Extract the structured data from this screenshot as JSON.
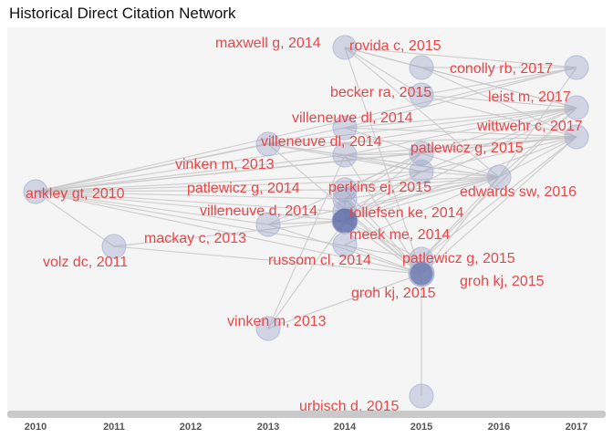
{
  "chart_data": {
    "type": "network",
    "title": "Historical Direct Citation Network",
    "x_axis": {
      "label": "",
      "years": [
        2010,
        2011,
        2012,
        2013,
        2014,
        2015,
        2016,
        2017
      ]
    },
    "nodes": [
      {
        "id": "n1",
        "label": "maxwell g, 2014",
        "year": 2014
      },
      {
        "id": "n2",
        "label": "rovida c, 2015",
        "year": 2015
      },
      {
        "id": "n3",
        "label": "conolly rb, 2017",
        "year": 2017
      },
      {
        "id": "n4",
        "label": "becker ra, 2015",
        "year": 2015
      },
      {
        "id": "n5",
        "label": "leist m, 2017",
        "year": 2017
      },
      {
        "id": "n6",
        "label": "villeneuve dl, 2014",
        "year": 2014
      },
      {
        "id": "n7",
        "label": "wittwehr c, 2017",
        "year": 2017
      },
      {
        "id": "n8",
        "label": "villeneuve dl, 2014",
        "year": 2014
      },
      {
        "id": "n9",
        "label": "patlewicz g, 2015",
        "year": 2015
      },
      {
        "id": "n10",
        "label": "vinken m, 2013",
        "year": 2013
      },
      {
        "id": "n11",
        "label": "ankley gt, 2010",
        "year": 2010
      },
      {
        "id": "n12",
        "label": "patlewicz g, 2014",
        "year": 2014
      },
      {
        "id": "n13",
        "label": "perkins ej, 2015",
        "year": 2015
      },
      {
        "id": "n14",
        "label": "edwards sw, 2016",
        "year": 2016
      },
      {
        "id": "n15",
        "label": "villeneuve d, 2014",
        "year": 2014
      },
      {
        "id": "n16",
        "label": "tollefsen ke, 2014",
        "year": 2014
      },
      {
        "id": "n17",
        "label": "mackay c, 2013",
        "year": 2013
      },
      {
        "id": "n18",
        "label": "meek me, 2014",
        "year": 2014
      },
      {
        "id": "n19",
        "label": "volz dc, 2011",
        "year": 2011
      },
      {
        "id": "n20",
        "label": "russom cl, 2014",
        "year": 2014
      },
      {
        "id": "n21",
        "label": "patlewicz g, 2015",
        "year": 2015
      },
      {
        "id": "n22",
        "label": "groh kj, 2015",
        "year": 2015
      },
      {
        "id": "n23",
        "label": "groh kj, 2015",
        "year": 2015
      },
      {
        "id": "n24",
        "label": "vinken m, 2013",
        "year": 2013
      },
      {
        "id": "n25",
        "label": "urbisch d, 2015",
        "year": 2015
      }
    ],
    "edges": [
      [
        "n11",
        "n19"
      ],
      [
        "n11",
        "n10"
      ],
      [
        "n11",
        "n12"
      ],
      [
        "n11",
        "n15"
      ],
      [
        "n11",
        "n18"
      ],
      [
        "n11",
        "n22"
      ],
      [
        "n11",
        "n14"
      ],
      [
        "n11",
        "n3"
      ],
      [
        "n11",
        "n8"
      ],
      [
        "n11",
        "n6"
      ],
      [
        "n11",
        "n9"
      ],
      [
        "n11",
        "n16"
      ],
      [
        "n11",
        "n17"
      ],
      [
        "n11",
        "n7"
      ],
      [
        "n11",
        "n5"
      ],
      [
        "n11",
        "n13"
      ],
      [
        "n11",
        "n21"
      ],
      [
        "n19",
        "n22"
      ],
      [
        "n19",
        "n18"
      ],
      [
        "n10",
        "n8"
      ],
      [
        "n10",
        "n13"
      ],
      [
        "n10",
        "n14"
      ],
      [
        "n10",
        "n5"
      ],
      [
        "n10",
        "n7"
      ],
      [
        "n10",
        "n22"
      ],
      [
        "n17",
        "n18"
      ],
      [
        "n17",
        "n22"
      ],
      [
        "n17",
        "n9"
      ],
      [
        "n17",
        "n14"
      ],
      [
        "n24",
        "n22"
      ],
      [
        "n24",
        "n18"
      ],
      [
        "n24",
        "n8"
      ],
      [
        "n1",
        "n2"
      ],
      [
        "n1",
        "n3"
      ],
      [
        "n1",
        "n5"
      ],
      [
        "n1",
        "n14"
      ],
      [
        "n1",
        "n22"
      ],
      [
        "n1",
        "n4"
      ],
      [
        "n2",
        "n3"
      ],
      [
        "n2",
        "n5"
      ],
      [
        "n2",
        "n7"
      ],
      [
        "n4",
        "n5"
      ],
      [
        "n4",
        "n3"
      ],
      [
        "n4",
        "n7"
      ],
      [
        "n6",
        "n9"
      ],
      [
        "n6",
        "n7"
      ],
      [
        "n6",
        "n5"
      ],
      [
        "n6",
        "n3"
      ],
      [
        "n8",
        "n9"
      ],
      [
        "n8",
        "n14"
      ],
      [
        "n8",
        "n7"
      ],
      [
        "n8",
        "n5"
      ],
      [
        "n8",
        "n22"
      ],
      [
        "n8",
        "n13"
      ],
      [
        "n9",
        "n7"
      ],
      [
        "n9",
        "n5"
      ],
      [
        "n9",
        "n14"
      ],
      [
        "n12",
        "n13"
      ],
      [
        "n12",
        "n9"
      ],
      [
        "n12",
        "n14"
      ],
      [
        "n12",
        "n22"
      ],
      [
        "n13",
        "n14"
      ],
      [
        "n13",
        "n7"
      ],
      [
        "n13",
        "n5"
      ],
      [
        "n15",
        "n18"
      ],
      [
        "n15",
        "n22"
      ],
      [
        "n15",
        "n14"
      ],
      [
        "n15",
        "n9"
      ],
      [
        "n16",
        "n22"
      ],
      [
        "n16",
        "n14"
      ],
      [
        "n16",
        "n13"
      ],
      [
        "n18",
        "n22"
      ],
      [
        "n18",
        "n21"
      ],
      [
        "n18",
        "n14"
      ],
      [
        "n18",
        "n13"
      ],
      [
        "n18",
        "n9"
      ],
      [
        "n18",
        "n7"
      ],
      [
        "n18",
        "n5"
      ],
      [
        "n20",
        "n22"
      ],
      [
        "n20",
        "n14"
      ],
      [
        "n21",
        "n14"
      ],
      [
        "n21",
        "n7"
      ],
      [
        "n21",
        "n5"
      ],
      [
        "n22",
        "n23"
      ],
      [
        "n22",
        "n25"
      ],
      [
        "n22",
        "n14"
      ],
      [
        "n22",
        "n7"
      ],
      [
        "n14",
        "n7"
      ],
      [
        "n14",
        "n5"
      ],
      [
        "n14",
        "n3"
      ]
    ]
  },
  "colors": {
    "node_fill": "#8e99c4",
    "node_fill_heavy": "#5f6fa8",
    "node_stroke": "#b6bdd8",
    "edge": "#c9c9c9",
    "label": "#e8474a",
    "panel_bg": "#f5f5f5",
    "axis_bar": "#c9c9c9"
  }
}
